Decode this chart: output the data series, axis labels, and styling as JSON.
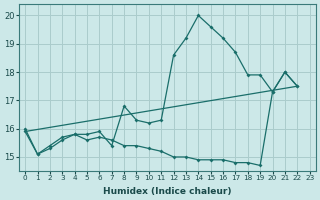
{
  "xlabel": "Humidex (Indice chaleur)",
  "xlim": [
    -0.5,
    23.5
  ],
  "ylim": [
    14.5,
    20.4
  ],
  "yticks": [
    15,
    16,
    17,
    18,
    19,
    20
  ],
  "xticks": [
    0,
    1,
    2,
    3,
    4,
    5,
    6,
    7,
    8,
    9,
    10,
    11,
    12,
    13,
    14,
    15,
    16,
    17,
    18,
    19,
    20,
    21,
    22,
    23
  ],
  "bg_color": "#cce8e8",
  "grid_color": "#aacccc",
  "line_color": "#1a6e6a",
  "line1_x": [
    0,
    1,
    2,
    3,
    4,
    5,
    6,
    7,
    8,
    9,
    10,
    11,
    12,
    13,
    14,
    15,
    16,
    17,
    18,
    19,
    20,
    21,
    22
  ],
  "line1_y": [
    16.0,
    15.1,
    15.4,
    15.7,
    15.8,
    15.8,
    15.9,
    15.4,
    16.8,
    16.3,
    16.2,
    16.3,
    18.6,
    19.2,
    20.0,
    19.6,
    19.2,
    18.7,
    17.9,
    17.9,
    17.3,
    18.0,
    17.5
  ],
  "line2_x": [
    0,
    1,
    2,
    3,
    4,
    5,
    6,
    7,
    8,
    9,
    10,
    11,
    12,
    13,
    14,
    15,
    16,
    17,
    18,
    19,
    20,
    21,
    22
  ],
  "line2_y": [
    15.9,
    15.1,
    15.3,
    15.6,
    15.8,
    15.6,
    15.7,
    15.6,
    15.4,
    15.4,
    15.3,
    15.2,
    15.0,
    15.0,
    14.9,
    14.9,
    14.9,
    14.8,
    14.8,
    14.7,
    17.3,
    18.0,
    17.5
  ],
  "line3_x": [
    0,
    22
  ],
  "line3_y": [
    15.9,
    17.5
  ]
}
